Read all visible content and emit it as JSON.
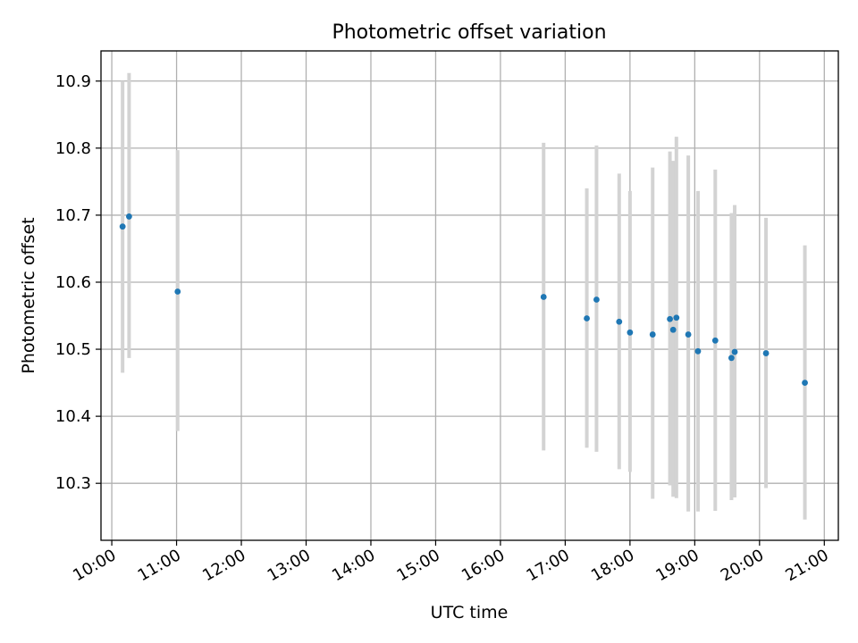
{
  "chart_data": {
    "type": "scatter",
    "title": "Photometric offset variation",
    "xlabel": "UTC time",
    "ylabel": "Photometric offset",
    "xlim": [
      "09:50",
      "21:13"
    ],
    "ylim": [
      10.215,
      10.945
    ],
    "x_ticks": [
      "10:00",
      "11:00",
      "12:00",
      "13:00",
      "14:00",
      "15:00",
      "16:00",
      "17:00",
      "18:00",
      "19:00",
      "20:00",
      "21:00"
    ],
    "y_ticks": [
      10.3,
      10.4,
      10.5,
      10.6,
      10.7,
      10.8,
      10.9
    ],
    "y_tick_labels": [
      "10.3",
      "10.4",
      "10.5",
      "10.6",
      "10.7",
      "10.8",
      "10.9"
    ],
    "grid": true,
    "colors": {
      "points": "#1f77b4",
      "errorbars": "#d3d3d3",
      "grid": "#b0b0b0"
    },
    "points": [
      {
        "t": "10:10",
        "y": 10.683,
        "low": 10.465,
        "high": 10.9
      },
      {
        "t": "10:16",
        "y": 10.698,
        "low": 10.487,
        "high": 10.912
      },
      {
        "t": "11:01",
        "y": 10.586,
        "low": 10.378,
        "high": 10.797
      },
      {
        "t": "16:40",
        "y": 10.578,
        "low": 10.349,
        "high": 10.808
      },
      {
        "t": "17:20",
        "y": 10.546,
        "low": 10.353,
        "high": 10.74
      },
      {
        "t": "17:29",
        "y": 10.574,
        "low": 10.347,
        "high": 10.804
      },
      {
        "t": "17:50",
        "y": 10.541,
        "low": 10.321,
        "high": 10.762
      },
      {
        "t": "18:00",
        "y": 10.525,
        "low": 10.317,
        "high": 10.736
      },
      {
        "t": "18:21",
        "y": 10.522,
        "low": 10.277,
        "high": 10.771
      },
      {
        "t": "18:37",
        "y": 10.545,
        "low": 10.297,
        "high": 10.795
      },
      {
        "t": "18:40",
        "y": 10.529,
        "low": 10.28,
        "high": 10.781
      },
      {
        "t": "18:43",
        "y": 10.547,
        "low": 10.278,
        "high": 10.817
      },
      {
        "t": "18:54",
        "y": 10.522,
        "low": 10.258,
        "high": 10.789
      },
      {
        "t": "19:03",
        "y": 10.497,
        "low": 10.258,
        "high": 10.736
      },
      {
        "t": "19:19",
        "y": 10.513,
        "low": 10.259,
        "high": 10.768
      },
      {
        "t": "19:34",
        "y": 10.487,
        "low": 10.275,
        "high": 10.703
      },
      {
        "t": "19:37",
        "y": 10.496,
        "low": 10.279,
        "high": 10.715
      },
      {
        "t": "20:06",
        "y": 10.494,
        "low": 10.293,
        "high": 10.696
      },
      {
        "t": "20:42",
        "y": 10.45,
        "low": 10.246,
        "high": 10.655
      }
    ]
  }
}
